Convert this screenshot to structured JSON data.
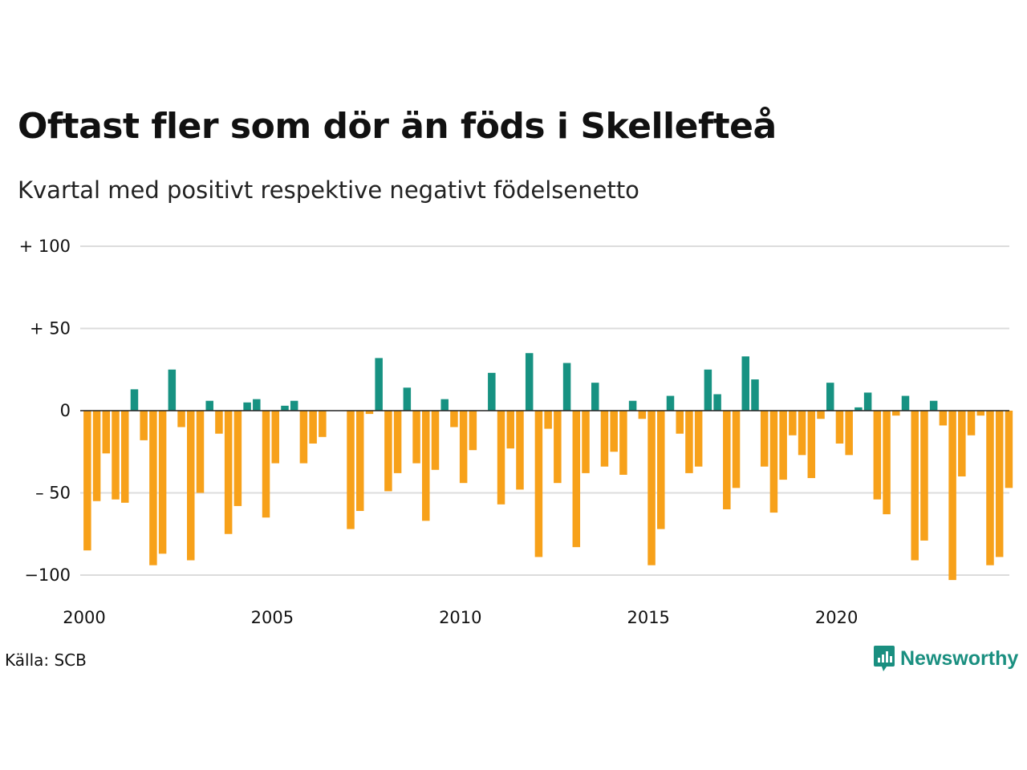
{
  "header": {
    "title": "Oftast fler som dör än föds i Skellefteå",
    "subtitle": "Kvartal med positivt respektive negativt födelsenetto"
  },
  "footer": {
    "source": "Källa: SCB",
    "brand": "Newsworthy",
    "brand_icon": "bar-chart-speech-bubble-icon"
  },
  "chart_data": {
    "type": "bar",
    "title": "Oftast fler som dör än föds i Skellefteå",
    "subtitle": "Kvartal med positivt respektive negativt födelsenetto",
    "xlabel": "",
    "ylabel": "",
    "x_start_year": 2000,
    "x_start_quarter": 1,
    "ylim": [
      -105,
      100
    ],
    "yticks": [
      100,
      50,
      0,
      -50,
      -100
    ],
    "ytick_labels": [
      "+ 100",
      "+  50",
      "0",
      "– 50",
      "−100"
    ],
    "xtick_labels": [
      "2000",
      "2005",
      "2010",
      "2015",
      "2020"
    ],
    "grid": true,
    "colors": {
      "positive": "#179282",
      "negative": "#f7a11a"
    },
    "values": [
      -85,
      -55,
      -26,
      -54,
      -56,
      13,
      -18,
      -94,
      -87,
      25,
      -10,
      -91,
      -50,
      6,
      -14,
      -75,
      -58,
      5,
      7,
      -65,
      -32,
      3,
      6,
      -32,
      -20,
      -16,
      0,
      0,
      -72,
      -61,
      -2,
      32,
      -49,
      -38,
      14,
      -32,
      -67,
      -36,
      7,
      -10,
      -44,
      -24,
      0,
      23,
      -57,
      -23,
      -48,
      35,
      -89,
      -11,
      -44,
      29,
      -83,
      -38,
      17,
      -34,
      -25,
      -39,
      6,
      -5,
      -94,
      -72,
      9,
      -14,
      -38,
      -34,
      25,
      10,
      -60,
      -47,
      33,
      19,
      -34,
      -62,
      -42,
      -15,
      -27,
      -41,
      -5,
      17,
      -20,
      -27,
      2,
      11,
      -54,
      -63,
      -3,
      9,
      -91,
      -79,
      6,
      -9,
      -103,
      -40,
      -15,
      -3,
      -94,
      -89,
      -47
    ]
  }
}
